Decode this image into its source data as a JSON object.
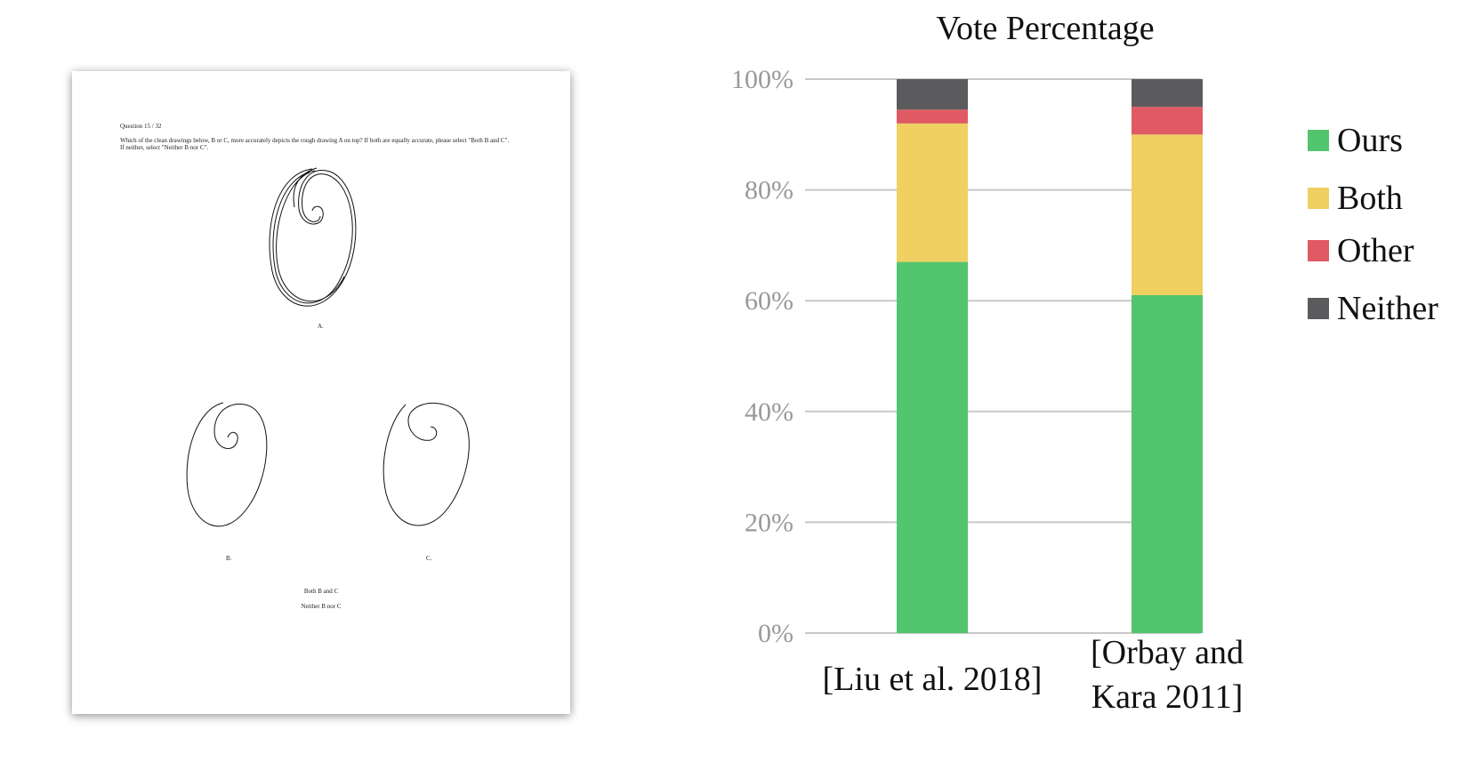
{
  "survey": {
    "question_number": "Question 15 / 32",
    "question_text": "Which of the clean drawings below, B or C, more accurately depicts the rough drawing A on top? If both are equally accurate, please select \"Both B and C\". If neither, select \"Neither B nor C\".",
    "label_a": "A.",
    "label_b": "B.",
    "label_c": "C.",
    "option_both": "Both B and C",
    "option_neither": "Neither B nor C"
  },
  "chart_data": {
    "type": "bar",
    "stacked": true,
    "title": "Vote Percentage",
    "categories": [
      [
        "[Liu et al. 2018]"
      ],
      [
        "[Orbay and",
        "Kara 2011]"
      ]
    ],
    "series": [
      {
        "name": "Ours",
        "color": "#52c56e",
        "values": [
          67,
          61
        ]
      },
      {
        "name": "Both",
        "color": "#efd060",
        "values": [
          25,
          29
        ]
      },
      {
        "name": "Other",
        "color": "#e05a63",
        "values": [
          2.5,
          5
        ]
      },
      {
        "name": "Neither",
        "color": "#5b5a5c",
        "values": [
          5.5,
          5
        ]
      }
    ],
    "ylim": [
      0,
      100
    ],
    "yticks": [
      "0%",
      "20%",
      "40%",
      "60%",
      "80%",
      "100%"
    ],
    "ytick_values": [
      0,
      20,
      40,
      60,
      80,
      100
    ],
    "grid": true,
    "legend": "right"
  }
}
